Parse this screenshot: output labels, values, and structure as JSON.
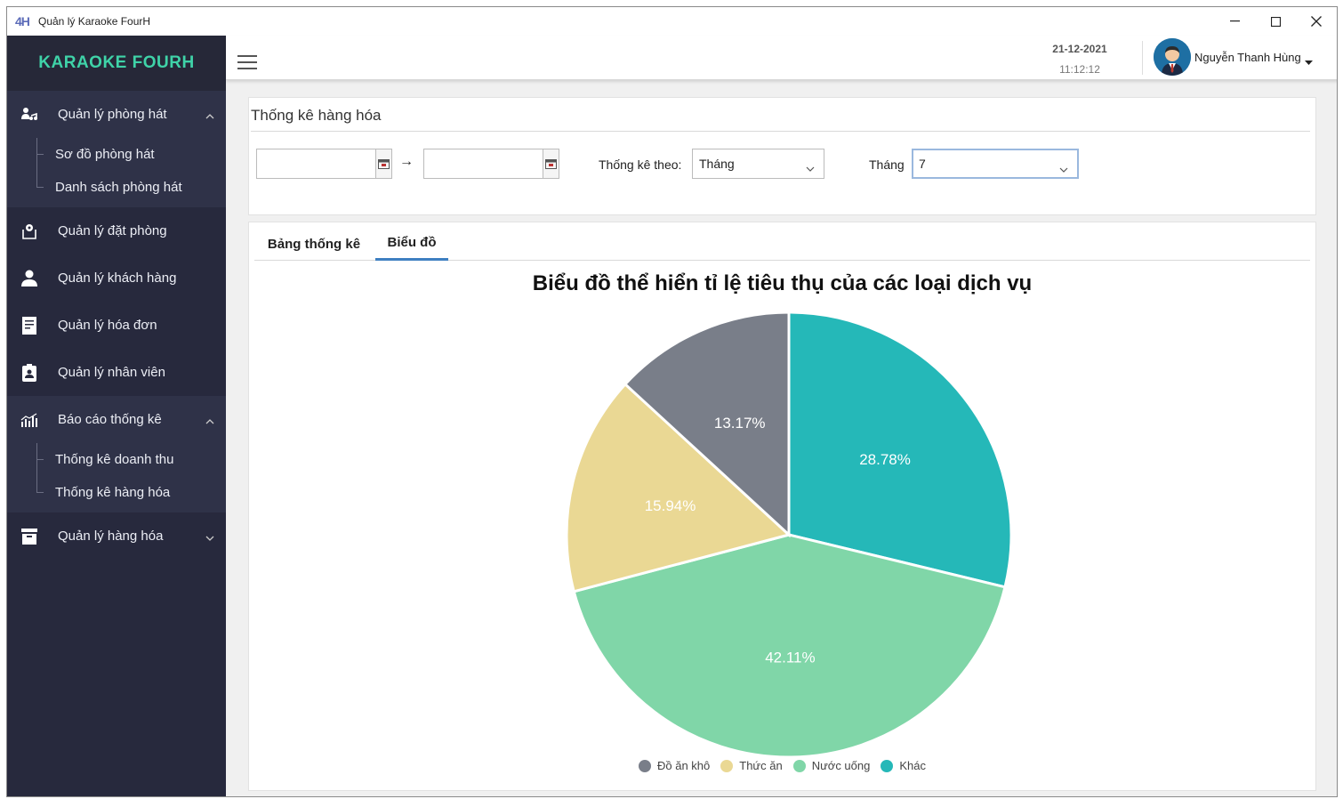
{
  "window": {
    "logo_text": "4H",
    "title": "Quản lý Karaoke FourH"
  },
  "sidebar": {
    "brand": "KARAOKE FOURH",
    "groups": [
      {
        "label": "Quản lý phòng hát",
        "icon": "users-music-icon",
        "expanded": true,
        "items": [
          {
            "label": "Sơ đồ phòng hát"
          },
          {
            "label": "Danh sách phòng hát"
          }
        ]
      },
      {
        "label": "Quản lý đặt phòng",
        "icon": "booking-icon"
      },
      {
        "label": "Quản lý khách hàng",
        "icon": "user-icon"
      },
      {
        "label": "Quản lý hóa đơn",
        "icon": "invoice-icon"
      },
      {
        "label": "Quản lý nhân viên",
        "icon": "id-badge-icon"
      },
      {
        "label": "Báo cáo thống kê",
        "icon": "chart-bars-icon",
        "expanded": true,
        "items": [
          {
            "label": "Thống kê doanh thu"
          },
          {
            "label": "Thống kê hàng hóa"
          }
        ]
      },
      {
        "label": "Quản lý hàng hóa",
        "icon": "archive-icon",
        "expanded": false
      }
    ]
  },
  "header": {
    "date": "21-12-2021",
    "time": "11:12:12",
    "username": "Nguyễn Thanh Hùng"
  },
  "filter": {
    "title": "Thống kê hàng hóa",
    "from_date": "",
    "to_date": "",
    "arrow": "→",
    "group_by_label": "Thống kê theo:",
    "group_by_value": "Tháng",
    "month_label": "Tháng",
    "month_value": "7"
  },
  "tabs": [
    {
      "label": "Bảng thống kê",
      "active": false
    },
    {
      "label": "Biểu đồ",
      "active": true
    }
  ],
  "chart_data": {
    "type": "pie",
    "title": "Biểu đồ thể hiển tỉ lệ tiêu thụ của các loại dịch vụ",
    "legend_position": "bottom",
    "slices": [
      {
        "name": "Khác",
        "value": 28.78,
        "label": "28.78%",
        "color": "#25b8b8"
      },
      {
        "name": "Nước uống",
        "value": 42.11,
        "label": "42.11%",
        "color": "#80d6a8"
      },
      {
        "name": "Thức ăn",
        "value": 15.94,
        "label": "15.94%",
        "color": "#ead894"
      },
      {
        "name": "Đồ ăn khô",
        "value": 13.17,
        "label": "13.17%",
        "color": "#797e89"
      }
    ],
    "legend_order": [
      "Đồ ăn khô",
      "Thức ăn",
      "Nước uống",
      "Khác"
    ]
  }
}
